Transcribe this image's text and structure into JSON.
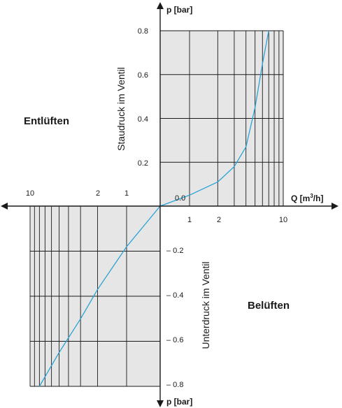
{
  "chart_data": {
    "type": "line",
    "colors": {
      "background": "#e6e6e6",
      "grid": "#1a1a1a",
      "curve": "#29a3d6"
    },
    "axes": {
      "x_label": "Q [m³/h]",
      "x_label_base": "Q [m",
      "x_label_sup": "3",
      "x_label_end": "/h]",
      "y_label_top": "p [bar]",
      "y_label_bottom": "p [bar]",
      "x_scale": "log",
      "y_scale": "linear",
      "positive_x_ticks": [
        "1",
        "2",
        "10"
      ],
      "negative_x_ticks": [
        "10",
        "2",
        "1"
      ],
      "positive_y_ticks": [
        "0.8",
        "0.6",
        "0.4",
        "0.2"
      ],
      "negative_y_ticks": [
        "– 0.2",
        "– 0.4",
        "– 0.6",
        "– 0.8"
      ],
      "origin_label": "0.0"
    },
    "quadrant_labels": {
      "upper_left": "Entlüften",
      "lower_right": "Belüften"
    },
    "vertical_labels": {
      "upper": "Staudruck im Ventil",
      "lower": "Unterdruck im Ventil"
    },
    "series": [
      {
        "quadrant": "upper",
        "points": [
          {
            "q": 0,
            "p": 0.0
          },
          {
            "q": 1,
            "p": 0.05
          },
          {
            "q": 2,
            "p": 0.11
          },
          {
            "q": 3,
            "p": 0.18
          },
          {
            "q": 4,
            "p": 0.27
          },
          {
            "q": 5,
            "p": 0.45
          },
          {
            "q": 6,
            "p": 0.65
          },
          {
            "q": 7,
            "p": 0.8
          }
        ]
      },
      {
        "quadrant": "lower",
        "points": [
          {
            "q": 0,
            "p": 0.0
          },
          {
            "q": 1,
            "p": -0.18
          },
          {
            "q": 2,
            "p": -0.37
          },
          {
            "q": 3,
            "p": -0.5
          },
          {
            "q": 5,
            "p": -0.65
          },
          {
            "q": 8,
            "p": -0.8
          }
        ]
      }
    ]
  }
}
